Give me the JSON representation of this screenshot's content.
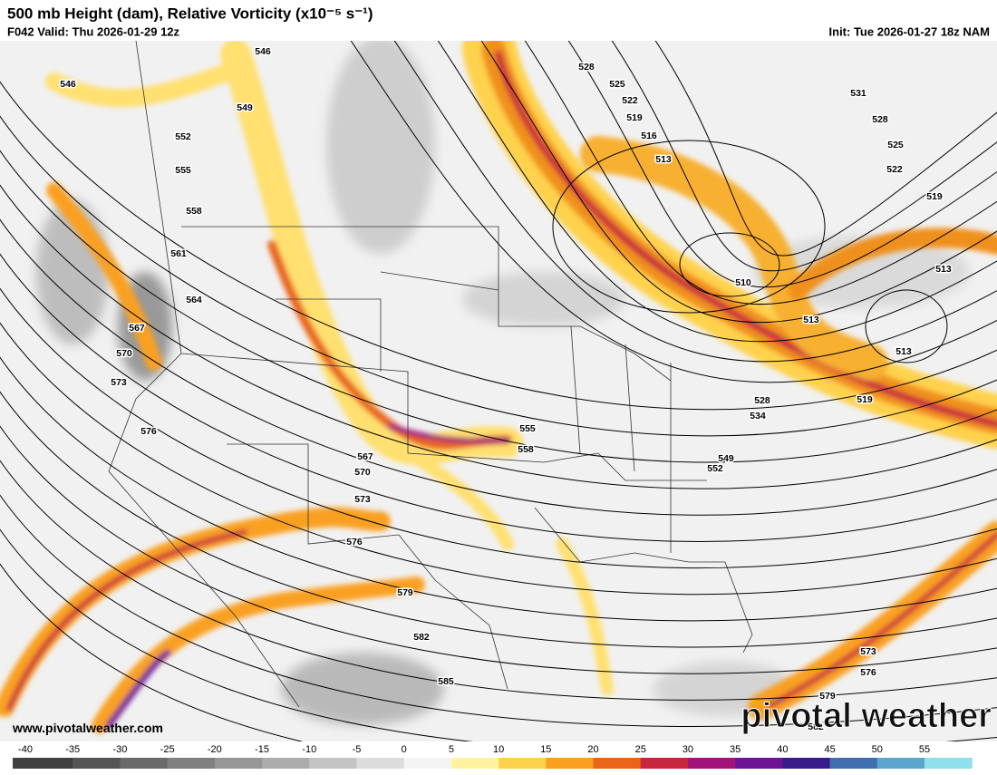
{
  "header": {
    "title": "500 mb Height (dam), Relative Vorticity (x10⁻⁵ s⁻¹)",
    "valid": "F042 Valid: Thu 2026-01-29 12z",
    "init": "Init: Tue 2026-01-27 18z NAM"
  },
  "contour_labels": [
    546,
    546,
    549,
    552,
    555,
    558,
    561,
    564,
    567,
    570,
    573,
    576,
    528,
    525,
    522,
    519,
    516,
    513,
    531,
    528,
    525,
    522,
    519,
    510,
    513,
    513,
    513,
    519,
    528,
    534,
    555,
    558,
    549,
    552,
    567,
    570,
    573,
    576,
    579,
    582,
    585,
    573,
    576,
    579,
    582
  ],
  "watermark": "www.pivotalweather.com",
  "logo": "pivotal weather",
  "colorbar": {
    "ticks": [
      -40,
      -35,
      -30,
      -25,
      -20,
      -15,
      -10,
      -5,
      0,
      5,
      10,
      15,
      20,
      25,
      30,
      35,
      40,
      45,
      50,
      55
    ],
    "colors": [
      "#404040",
      "#555555",
      "#6a6a6a",
      "#808080",
      "#969696",
      "#acacac",
      "#c4c4c4",
      "#dcdcdc",
      "#f4f4f4",
      "#fff3a0",
      "#ffd24d",
      "#f9a020",
      "#e8651a",
      "#c8253e",
      "#a0137a",
      "#6e1296",
      "#3a1b8c",
      "#3f6fb0",
      "#5aa6cc",
      "#8de0ec"
    ]
  }
}
